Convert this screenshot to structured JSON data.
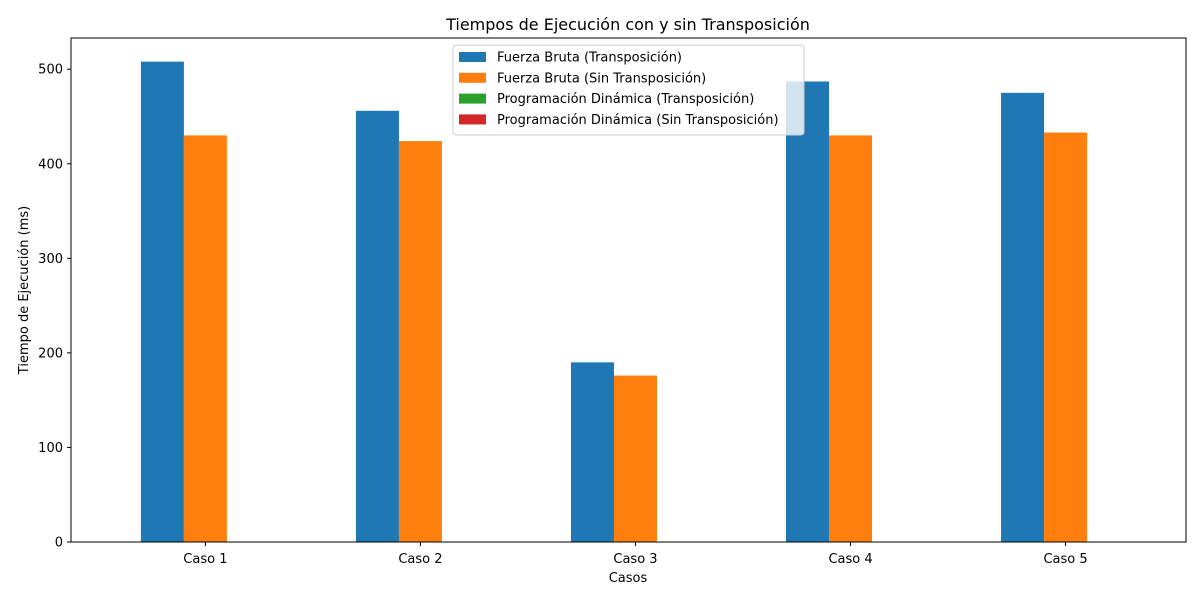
{
  "chart_data": {
    "type": "bar",
    "title": "Tiempos de Ejecución con y sin Transposición",
    "xlabel": "Casos",
    "ylabel": "Tiempo de Ejecución (ms)",
    "categories": [
      "Caso 1",
      "Caso 2",
      "Caso 3",
      "Caso 4",
      "Caso 5"
    ],
    "ylim": [
      0,
      533
    ],
    "yticks": [
      0,
      100,
      200,
      300,
      400,
      500
    ],
    "grid": false,
    "legend_position": "top-center",
    "series": [
      {
        "name": "Fuerza Bruta (Transposición)",
        "color": "#1f77b4",
        "values": [
          508,
          456,
          190,
          487,
          475
        ]
      },
      {
        "name": "Fuerza Bruta (Sin Transposición)",
        "color": "#ff7f0e",
        "values": [
          430,
          424,
          176,
          430,
          433
        ]
      },
      {
        "name": "Programación Dinámica (Transposición)",
        "color": "#2ca02c",
        "values": [
          0,
          0,
          0,
          0,
          0
        ]
      },
      {
        "name": "Programación Dinámica (Sin Transposición)",
        "color": "#d62728",
        "values": [
          0,
          0,
          0,
          0,
          0
        ]
      }
    ]
  }
}
